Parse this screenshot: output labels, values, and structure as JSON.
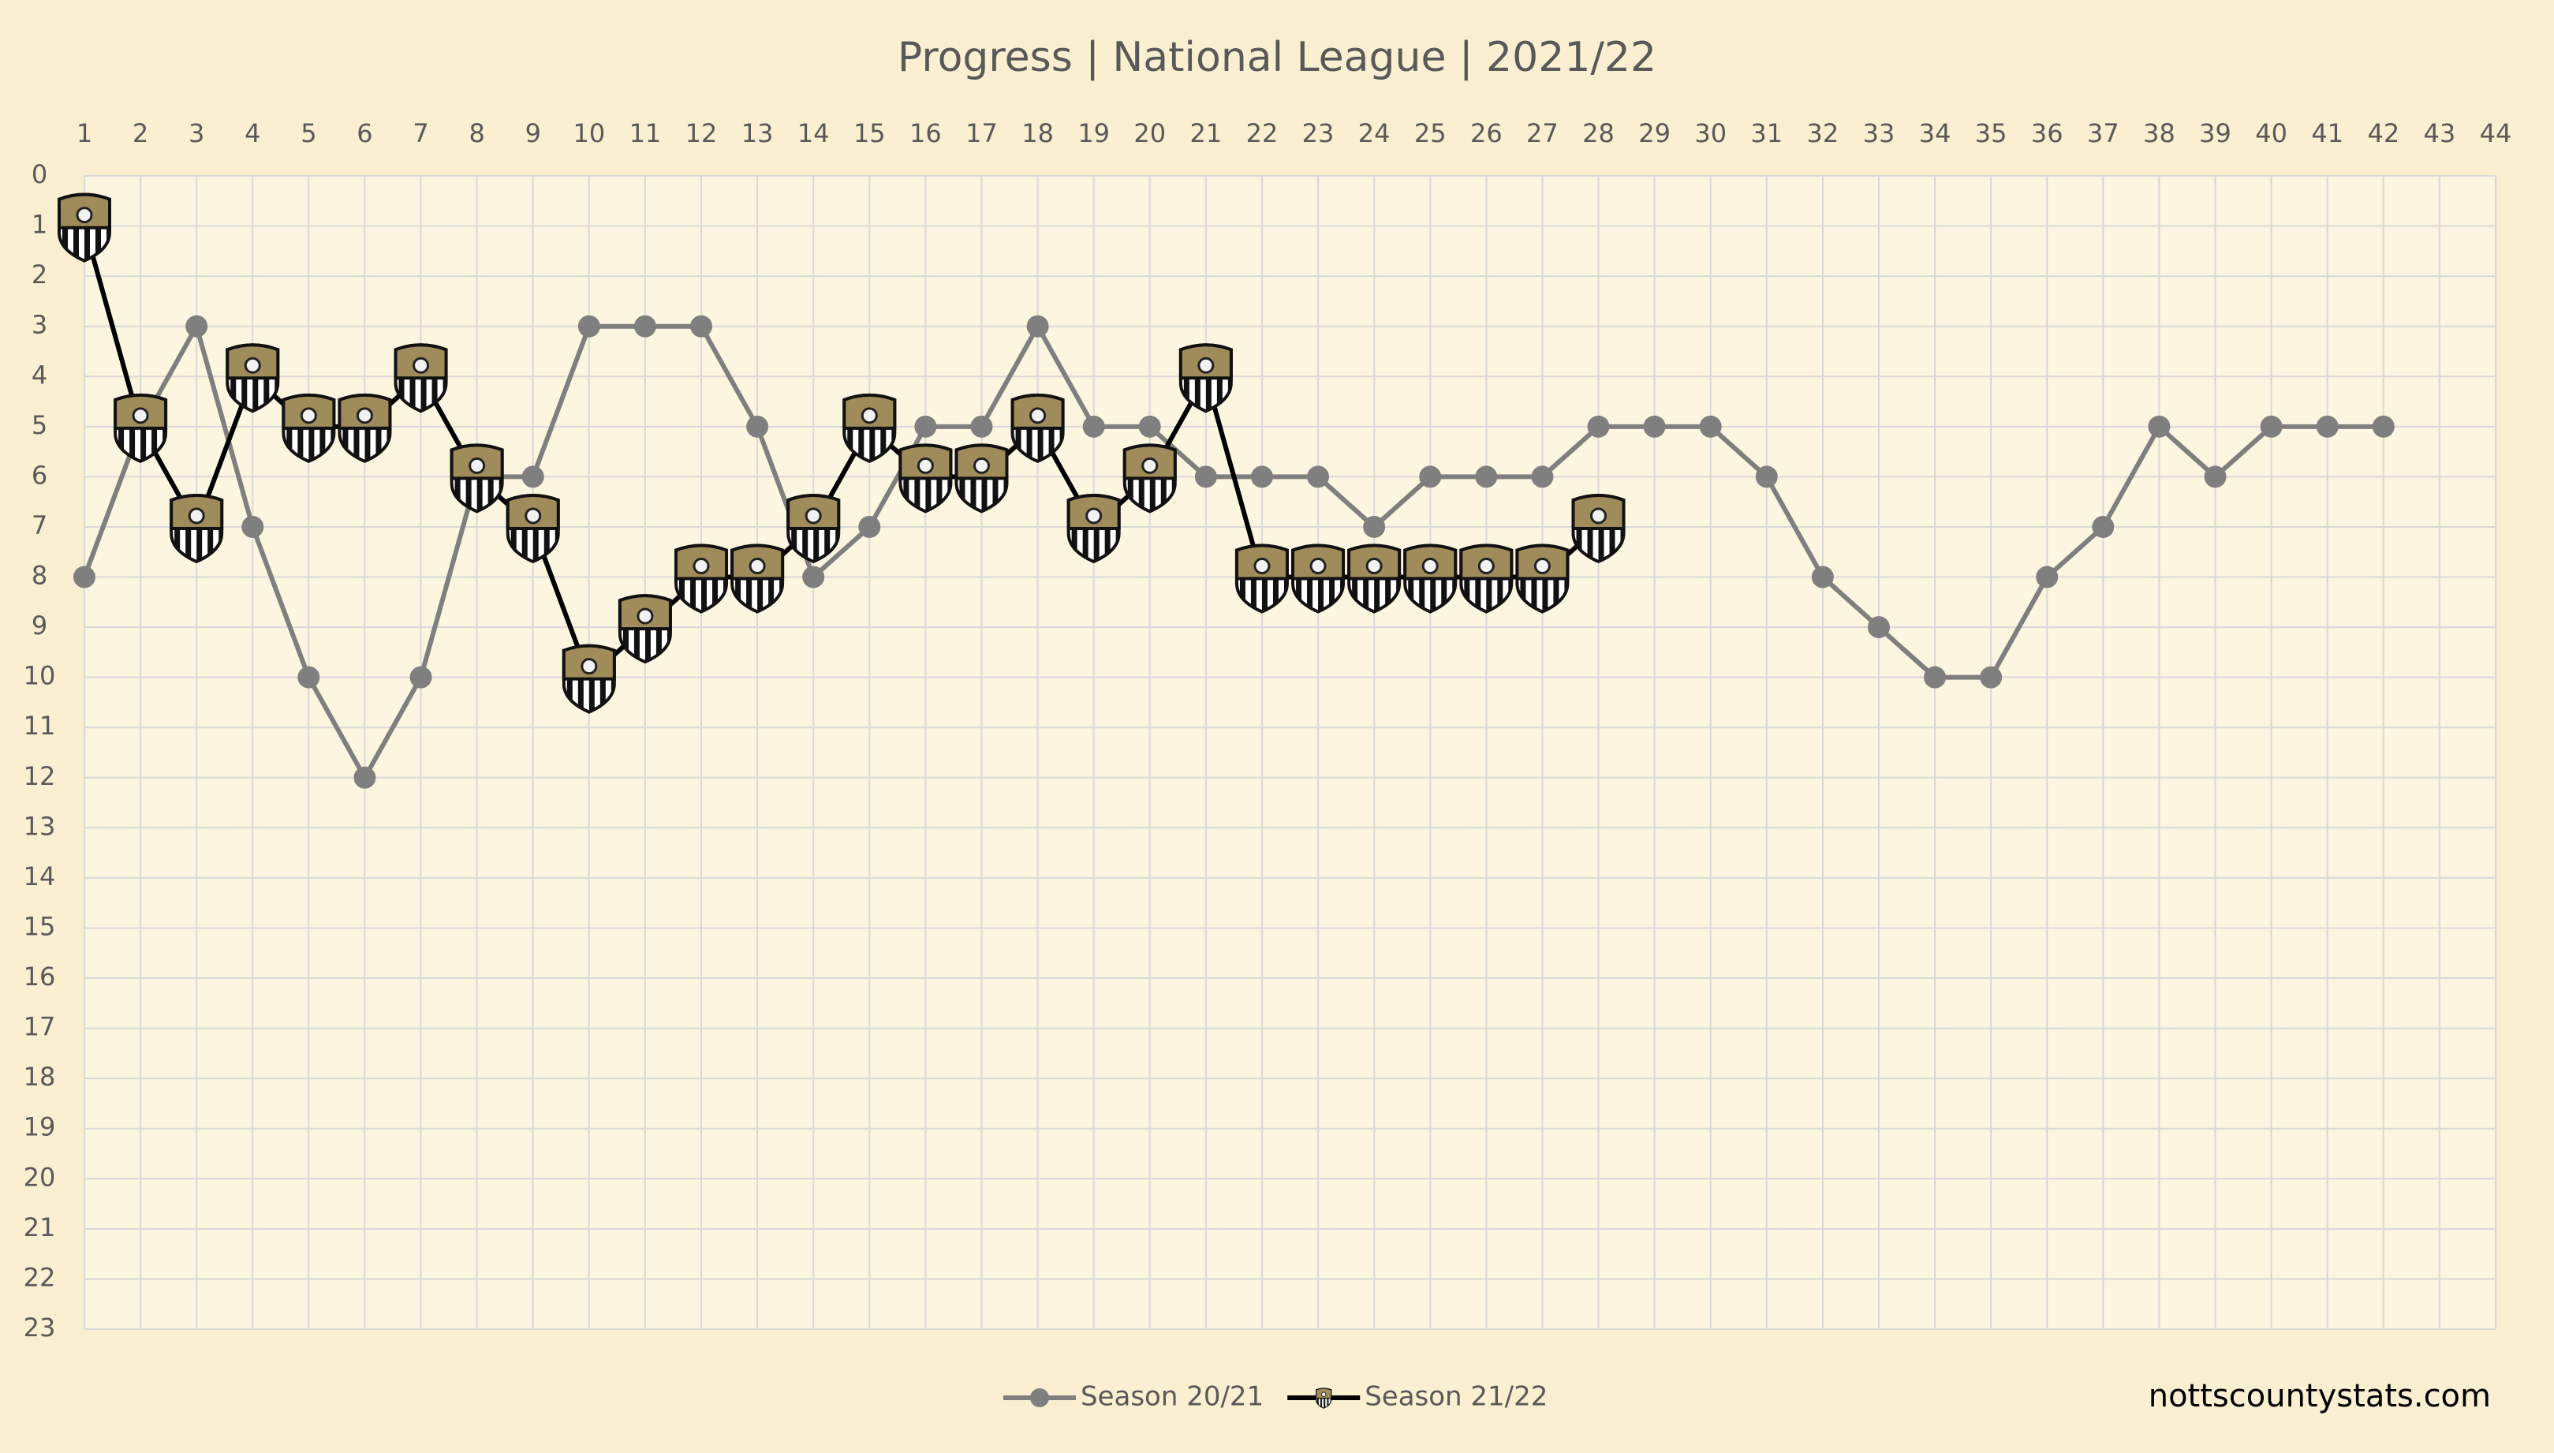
{
  "chart_data": {
    "type": "line",
    "title": "Progress | National League | 2021/22",
    "x": [
      1,
      2,
      3,
      4,
      5,
      6,
      7,
      8,
      9,
      10,
      11,
      12,
      13,
      14,
      15,
      16,
      17,
      18,
      19,
      20,
      21,
      22,
      23,
      24,
      25,
      26,
      27,
      28,
      29,
      30,
      31,
      32,
      33,
      34,
      35,
      36,
      37,
      38,
      39,
      40,
      41,
      42
    ],
    "series": [
      {
        "name": "Season 20/21",
        "color": "#7f7f7f",
        "marker": "circle",
        "values": [
          8,
          5,
          3,
          7,
          10,
          12,
          10,
          6,
          6,
          3,
          3,
          3,
          5,
          8,
          7,
          5,
          5,
          3,
          5,
          5,
          6,
          6,
          6,
          7,
          6,
          6,
          6,
          5,
          5,
          5,
          6,
          8,
          9,
          10,
          10,
          8,
          7,
          5,
          6,
          5,
          5,
          5
        ]
      },
      {
        "name": "Season 21/22",
        "color": "#000000",
        "marker": "badge",
        "values": [
          1,
          5,
          7,
          4,
          5,
          5,
          4,
          6,
          7,
          10,
          9,
          8,
          8,
          7,
          5,
          6,
          6,
          5,
          7,
          6,
          4,
          8,
          8,
          8,
          8,
          8,
          8,
          7,
          null,
          null,
          null,
          null,
          null,
          null,
          null,
          null,
          null,
          null,
          null,
          null,
          null,
          null
        ]
      }
    ],
    "xlim": [
      1,
      44
    ],
    "xticks": [
      1,
      2,
      3,
      4,
      5,
      6,
      7,
      8,
      9,
      10,
      11,
      12,
      13,
      14,
      15,
      16,
      17,
      18,
      19,
      20,
      21,
      22,
      23,
      24,
      25,
      26,
      27,
      28,
      29,
      30,
      31,
      32,
      33,
      34,
      35,
      36,
      37,
      38,
      39,
      40,
      41,
      42,
      43,
      44
    ],
    "ylim": [
      23,
      0
    ],
    "yticks": [
      0,
      1,
      2,
      3,
      4,
      5,
      6,
      7,
      8,
      9,
      10,
      11,
      12,
      13,
      14,
      15,
      16,
      17,
      18,
      19,
      20,
      21,
      22,
      23
    ],
    "grid": true,
    "legend": "bottom",
    "source": "nottscountystats.com"
  }
}
